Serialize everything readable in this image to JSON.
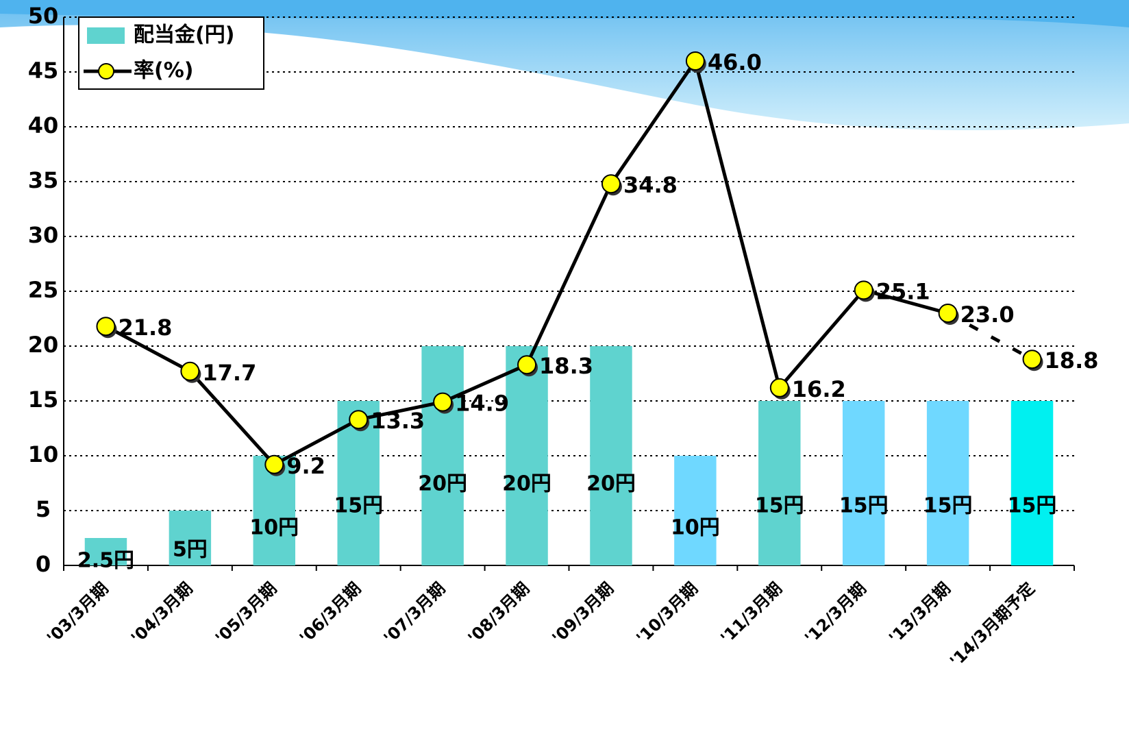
{
  "chart_data": {
    "type": "bar_line",
    "categories": [
      "'03/3月期",
      "'04/3月期",
      "'05/3月期",
      "'06/3月期",
      "'07/3月期",
      "'08/3月期",
      "'09/3月期",
      "'10/3月期",
      "'11/3月期",
      "'12/3月期",
      "'13/3月期",
      "'14/3月期予定"
    ],
    "series": [
      {
        "name": "配当金(円)",
        "type": "bar",
        "color": "#5fd3cf",
        "colors": [
          "#5fd3cf",
          "#5fd3cf",
          "#5fd3cf",
          "#5fd3cf",
          "#5fd3cf",
          "#5fd3cf",
          "#5fd3cf",
          "#6fd8ff",
          "#5fd3cf",
          "#6fd8ff",
          "#6fd8ff",
          "#00f0f0"
        ],
        "values": [
          2.5,
          5,
          10,
          15,
          20,
          20,
          20,
          10,
          15,
          15,
          15,
          15
        ],
        "value_labels": [
          "2.5円",
          "5円",
          "10円",
          "15円",
          "20円",
          "20円",
          "20円",
          "10円",
          "15円",
          "15円",
          "15円",
          "15円"
        ]
      },
      {
        "name": "率(%)",
        "type": "line",
        "color": "#000000",
        "marker_color": "#ffff00",
        "dashed_from": 10,
        "values": [
          21.8,
          17.7,
          9.2,
          13.3,
          14.9,
          18.3,
          34.8,
          46.0,
          16.2,
          25.1,
          23.0,
          18.8
        ],
        "value_labels": [
          "21.8",
          "17.7",
          "9.2",
          "13.3",
          "14.9",
          "18.3",
          "34.8",
          "46.0",
          "16.2",
          "25.1",
          "23.0",
          "18.8"
        ]
      }
    ],
    "ylim": [
      0,
      50
    ],
    "yticks": [
      0,
      5,
      10,
      15,
      20,
      25,
      30,
      35,
      40,
      45,
      50
    ],
    "grid": true
  }
}
